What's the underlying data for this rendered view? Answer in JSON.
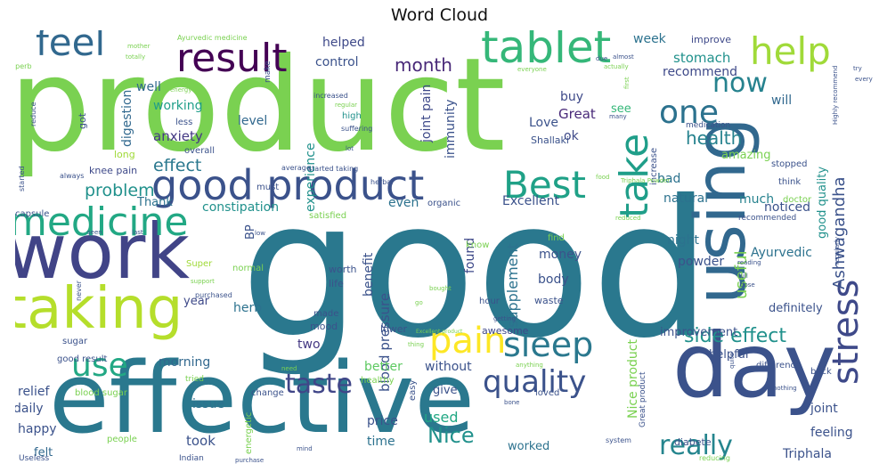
{
  "title": "Word Cloud",
  "palette": {
    "background": "#ffffff",
    "colormap": "viridis"
  },
  "words": [
    {
      "text": "good",
      "color": "#2a788e"
    },
    {
      "text": "product",
      "color": "#7ad151"
    },
    {
      "text": "effective",
      "color": "#2a788e"
    },
    {
      "text": "using",
      "color": "#31688e"
    },
    {
      "text": "work",
      "color": "#414487"
    },
    {
      "text": "day",
      "color": "#3b528b"
    },
    {
      "text": "taking",
      "color": "#b5de2b"
    },
    {
      "text": "tablet",
      "color": "#35b779"
    },
    {
      "text": "good product",
      "color": "#3b528b"
    },
    {
      "text": "result",
      "color": "#440154"
    },
    {
      "text": "medicine",
      "color": "#22a884"
    },
    {
      "text": "feel",
      "color": "#31688e"
    },
    {
      "text": "help",
      "color": "#a0da39"
    },
    {
      "text": "Best",
      "color": "#1fa187"
    },
    {
      "text": "take",
      "color": "#1f9e89"
    },
    {
      "text": "stress",
      "color": "#3e4989"
    },
    {
      "text": "pain",
      "color": "#fde725"
    },
    {
      "text": "sleep",
      "color": "#2a788e"
    },
    {
      "text": "use",
      "color": "#22a884"
    },
    {
      "text": "one",
      "color": "#2c728e"
    },
    {
      "text": "quality",
      "color": "#3b528b"
    },
    {
      "text": "taste",
      "color": "#404688"
    },
    {
      "text": "now",
      "color": "#26828e"
    },
    {
      "text": "really",
      "color": "#25858e"
    },
    {
      "text": "Ashwagandha",
      "color": "#3b528b"
    },
    {
      "text": "health",
      "color": "#26828e"
    },
    {
      "text": "side effect",
      "color": "#21918c"
    },
    {
      "text": "month",
      "color": "#482878"
    },
    {
      "text": "problem",
      "color": "#21918c"
    },
    {
      "text": "effect",
      "color": "#2a788e"
    },
    {
      "text": "Nice product",
      "color": "#7ad151"
    },
    {
      "text": "Nice",
      "color": "#21918c"
    },
    {
      "text": "blood pressure",
      "color": "#3b528b"
    },
    {
      "text": "supplement",
      "color": "#2c728e"
    },
    {
      "text": "useful",
      "color": "#7ad151"
    },
    {
      "text": "helped",
      "color": "#3e4989"
    },
    {
      "text": "control",
      "color": "#3b528b"
    },
    {
      "text": "stomach",
      "color": "#21918c"
    },
    {
      "text": "recommend",
      "color": "#3e4989"
    },
    {
      "text": "week",
      "color": "#2c728e"
    },
    {
      "text": "improve",
      "color": "#3e4989"
    },
    {
      "text": "will",
      "color": "#31688e"
    },
    {
      "text": "well",
      "color": "#31688e"
    },
    {
      "text": "working",
      "color": "#1f9e89"
    },
    {
      "text": "digestion",
      "color": "#31688e"
    },
    {
      "text": "anxiety",
      "color": "#443983"
    },
    {
      "text": "level",
      "color": "#31688e"
    },
    {
      "text": "experience",
      "color": "#21918c"
    },
    {
      "text": "immunity",
      "color": "#3b528b"
    },
    {
      "text": "joint pain",
      "color": "#3e4989"
    },
    {
      "text": "Great",
      "color": "#482878"
    },
    {
      "text": "buy",
      "color": "#3e4989"
    },
    {
      "text": "Love",
      "color": "#3b528b"
    },
    {
      "text": "see",
      "color": "#35b779"
    },
    {
      "text": "ok",
      "color": "#3e4989"
    },
    {
      "text": "Shallaki",
      "color": "#3b528b"
    },
    {
      "text": "amazing",
      "color": "#7ad151"
    },
    {
      "text": "bad",
      "color": "#2c728e"
    },
    {
      "text": "natural",
      "color": "#2c728e"
    },
    {
      "text": "much",
      "color": "#26828e"
    },
    {
      "text": "noticed",
      "color": "#3b528b"
    },
    {
      "text": "good quality",
      "color": "#21918c"
    },
    {
      "text": "constipation",
      "color": "#21918c"
    },
    {
      "text": "Thank",
      "color": "#2c728e"
    },
    {
      "text": "even",
      "color": "#2c728e"
    },
    {
      "text": "Excellent",
      "color": "#3b528b"
    },
    {
      "text": "BP",
      "color": "#3b528b"
    },
    {
      "text": "money",
      "color": "#3b528b"
    },
    {
      "text": "night",
      "color": "#2c728e"
    },
    {
      "text": "Ayurvedic",
      "color": "#2c728e"
    },
    {
      "text": "powder",
      "color": "#3b528b"
    },
    {
      "text": "body",
      "color": "#3b528b"
    },
    {
      "text": "found",
      "color": "#3e4989"
    },
    {
      "text": "benefit",
      "color": "#3b528b"
    },
    {
      "text": "herb",
      "color": "#2c728e"
    },
    {
      "text": "year",
      "color": "#3e4989"
    },
    {
      "text": "two",
      "color": "#443983"
    },
    {
      "text": "morning",
      "color": "#31688e"
    },
    {
      "text": "better",
      "color": "#5ec962"
    },
    {
      "text": "without",
      "color": "#3b528b"
    },
    {
      "text": "helpful",
      "color": "#3b528b"
    },
    {
      "text": "definitely",
      "color": "#3b528b"
    },
    {
      "text": "improvement",
      "color": "#3b528b"
    },
    {
      "text": "awesome",
      "color": "#3e4989"
    },
    {
      "text": "give",
      "color": "#3b528b"
    },
    {
      "text": "used",
      "color": "#22a884"
    },
    {
      "text": "price",
      "color": "#3b528b"
    },
    {
      "text": "time",
      "color": "#2c728e"
    },
    {
      "text": "issue",
      "color": "#2c728e"
    },
    {
      "text": "took",
      "color": "#3b528b"
    },
    {
      "text": "relief",
      "color": "#3b528b"
    },
    {
      "text": "daily",
      "color": "#3b528b"
    },
    {
      "text": "happy",
      "color": "#3b528b"
    },
    {
      "text": "felt",
      "color": "#31688e"
    },
    {
      "text": "joint",
      "color": "#3b528b"
    },
    {
      "text": "feeling",
      "color": "#3b528b"
    },
    {
      "text": "Triphala",
      "color": "#3b528b"
    },
    {
      "text": "worked",
      "color": "#2c728e"
    },
    {
      "text": "knee pain",
      "color": "#3e4989"
    },
    {
      "text": "long",
      "color": "#a0da39"
    },
    {
      "text": "got",
      "color": "#3b528b"
    },
    {
      "text": "less",
      "color": "#3b528b"
    },
    {
      "text": "overall",
      "color": "#3b528b"
    },
    {
      "text": "high",
      "color": "#21918c"
    },
    {
      "text": "make",
      "color": "#3b528b"
    },
    {
      "text": "suffering",
      "color": "#3b528b"
    },
    {
      "text": "medication",
      "color": "#3b528b"
    },
    {
      "text": "stopped",
      "color": "#3b528b"
    },
    {
      "text": "think",
      "color": "#3b528b"
    },
    {
      "text": "doctor",
      "color": "#7ad151"
    },
    {
      "text": "recommended",
      "color": "#3b528b"
    },
    {
      "text": "capsule",
      "color": "#3b528b"
    },
    {
      "text": "normal",
      "color": "#7ad151"
    },
    {
      "text": "satisfied",
      "color": "#7ad151"
    },
    {
      "text": "organic",
      "color": "#3b528b"
    },
    {
      "text": "must",
      "color": "#3b528b"
    },
    {
      "text": "worth",
      "color": "#3b528b"
    },
    {
      "text": "life",
      "color": "#3b528b"
    },
    {
      "text": "mood",
      "color": "#3b528b"
    },
    {
      "text": "made",
      "color": "#3b528b"
    },
    {
      "text": "Super",
      "color": "#a0da39"
    },
    {
      "text": "waste",
      "color": "#3b528b"
    },
    {
      "text": "hour",
      "color": "#3b528b"
    },
    {
      "text": "find",
      "color": "#7ad151"
    },
    {
      "text": "know",
      "color": "#7ad151"
    },
    {
      "text": "lower",
      "color": "#3b528b"
    },
    {
      "text": "sugar",
      "color": "#3b528b"
    },
    {
      "text": "good result",
      "color": "#3b528b"
    },
    {
      "text": "blood sugar",
      "color": "#7ad151"
    },
    {
      "text": "tried",
      "color": "#7ad151"
    },
    {
      "text": "healthy",
      "color": "#7ad151"
    },
    {
      "text": "change",
      "color": "#3b528b"
    },
    {
      "text": "easy",
      "color": "#3b528b"
    },
    {
      "text": "loved",
      "color": "#3b528b"
    },
    {
      "text": "energetic",
      "color": "#7ad151"
    },
    {
      "text": "people",
      "color": "#7ad151"
    },
    {
      "text": "Great product",
      "color": "#3b528b"
    },
    {
      "text": "diabete",
      "color": "#3b528b"
    },
    {
      "text": "increase",
      "color": "#3b528b"
    },
    {
      "text": "difference",
      "color": "#3b528b"
    },
    {
      "text": "back",
      "color": "#3b528b"
    },
    {
      "text": "Useless",
      "color": "#3b528b"
    },
    {
      "text": "Indian",
      "color": "#3b528b"
    },
    {
      "text": "system",
      "color": "#3b528b"
    },
    {
      "text": "reducing",
      "color": "#7ad151"
    },
    {
      "text": "Ayurvedic medicine",
      "color": "#7ad151"
    },
    {
      "text": "mother",
      "color": "#7ad151"
    },
    {
      "text": "totally",
      "color": "#7ad151"
    },
    {
      "text": "increased",
      "color": "#3b528b"
    },
    {
      "text": "regular",
      "color": "#7ad151"
    },
    {
      "text": "almost",
      "color": "#3b528b"
    },
    {
      "text": "actually",
      "color": "#7ad151"
    },
    {
      "text": "first",
      "color": "#7ad151"
    },
    {
      "text": "everyone",
      "color": "#7ad151"
    },
    {
      "text": "every",
      "color": "#3b528b"
    },
    {
      "text": "try",
      "color": "#3b528b"
    },
    {
      "text": "Highly recommend",
      "color": "#3b528b"
    },
    {
      "text": "reduce",
      "color": "#3b528b"
    },
    {
      "text": "energy",
      "color": "#7ad151"
    },
    {
      "text": "average",
      "color": "#3b528b"
    },
    {
      "text": "started taking",
      "color": "#3b528b"
    },
    {
      "text": "started",
      "color": "#3b528b"
    },
    {
      "text": "always",
      "color": "#3b528b"
    },
    {
      "text": "Superb",
      "color": "#7ad151"
    },
    {
      "text": "keep",
      "color": "#3b528b"
    },
    {
      "text": "lot",
      "color": "#3b528b"
    },
    {
      "text": "herbal",
      "color": "#3b528b"
    },
    {
      "text": "seen",
      "color": "#3b528b"
    },
    {
      "text": "last",
      "color": "#3b528b"
    },
    {
      "text": "low",
      "color": "#3b528b"
    },
    {
      "text": "never",
      "color": "#3b528b"
    },
    {
      "text": "support",
      "color": "#7ad151"
    },
    {
      "text": "purchased",
      "color": "#3b528b"
    },
    {
      "text": "getting",
      "color": "#3b528b"
    },
    {
      "text": "thing",
      "color": "#7ad151"
    },
    {
      "text": "Excellent product",
      "color": "#7ad151"
    },
    {
      "text": "bone",
      "color": "#3b528b"
    },
    {
      "text": "quite",
      "color": "#3b528b"
    },
    {
      "text": "nothing",
      "color": "#3b528b"
    },
    {
      "text": "anything",
      "color": "#7ad151"
    },
    {
      "text": "need",
      "color": "#7ad151"
    },
    {
      "text": "mind",
      "color": "#3b528b"
    },
    {
      "text": "purchase",
      "color": "#3b528b"
    },
    {
      "text": "reading",
      "color": "#3b528b"
    },
    {
      "text": "dose",
      "color": "#3b528b"
    },
    {
      "text": "full",
      "color": "#3b528b"
    },
    {
      "text": "regularly",
      "color": "#3b528b"
    },
    {
      "text": "reduced",
      "color": "#7ad151"
    },
    {
      "text": "go",
      "color": "#7ad151"
    },
    {
      "text": "due",
      "color": "#3b528b"
    },
    {
      "text": "many",
      "color": "#3b528b"
    },
    {
      "text": "food",
      "color": "#7ad151"
    },
    {
      "text": "bought",
      "color": "#7ad151"
    },
    {
      "text": "Triphala Powder",
      "color": "#7ad151"
    }
  ]
}
